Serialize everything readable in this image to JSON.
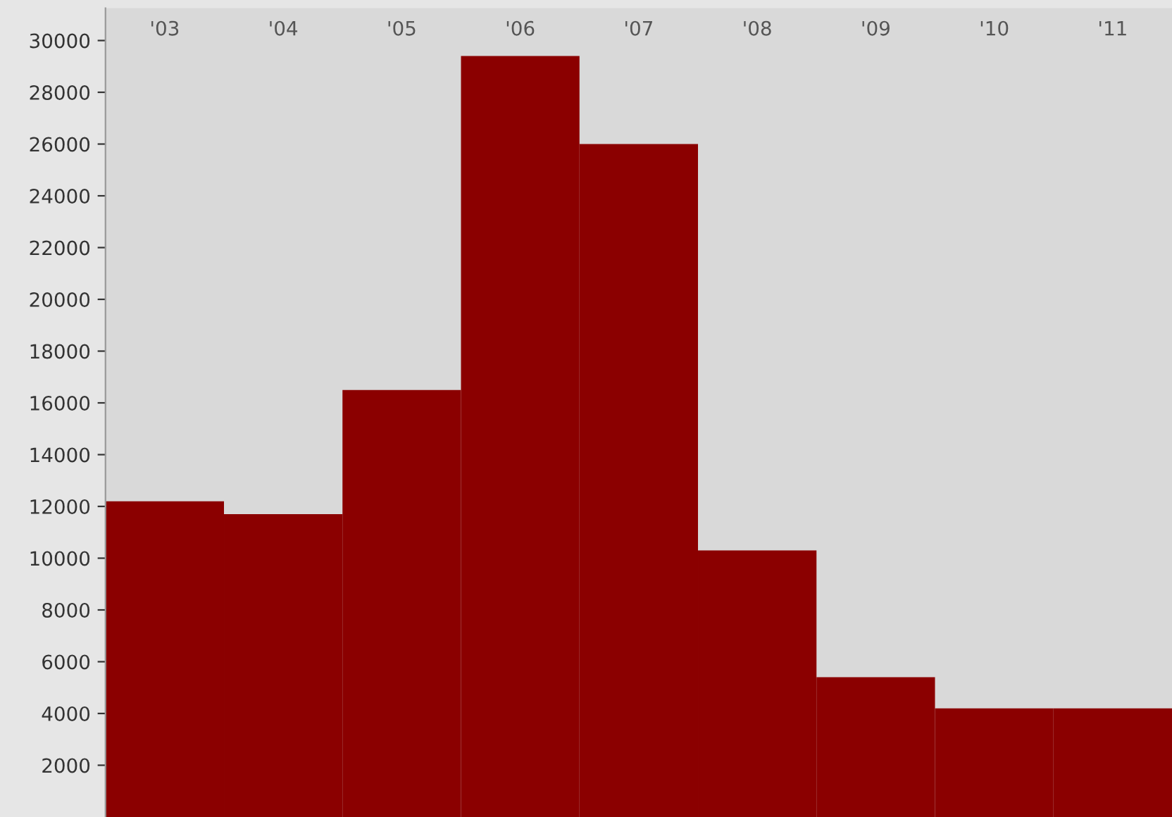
{
  "chart_data": {
    "type": "bar",
    "categories": [
      "'03",
      "'04",
      "'05",
      "'06",
      "'07",
      "'08",
      "'09",
      "'10",
      "'11"
    ],
    "values": [
      12200,
      11700,
      16500,
      29400,
      26000,
      10300,
      5400,
      4200,
      4200
    ],
    "color": "#8b0000",
    "ylim": [
      0,
      31250
    ],
    "yticks": [
      2000,
      4000,
      6000,
      8000,
      10000,
      12000,
      14000,
      16000,
      18000,
      20000,
      22000,
      24000,
      26000,
      28000,
      30000
    ],
    "grid": false,
    "legend": false
  }
}
